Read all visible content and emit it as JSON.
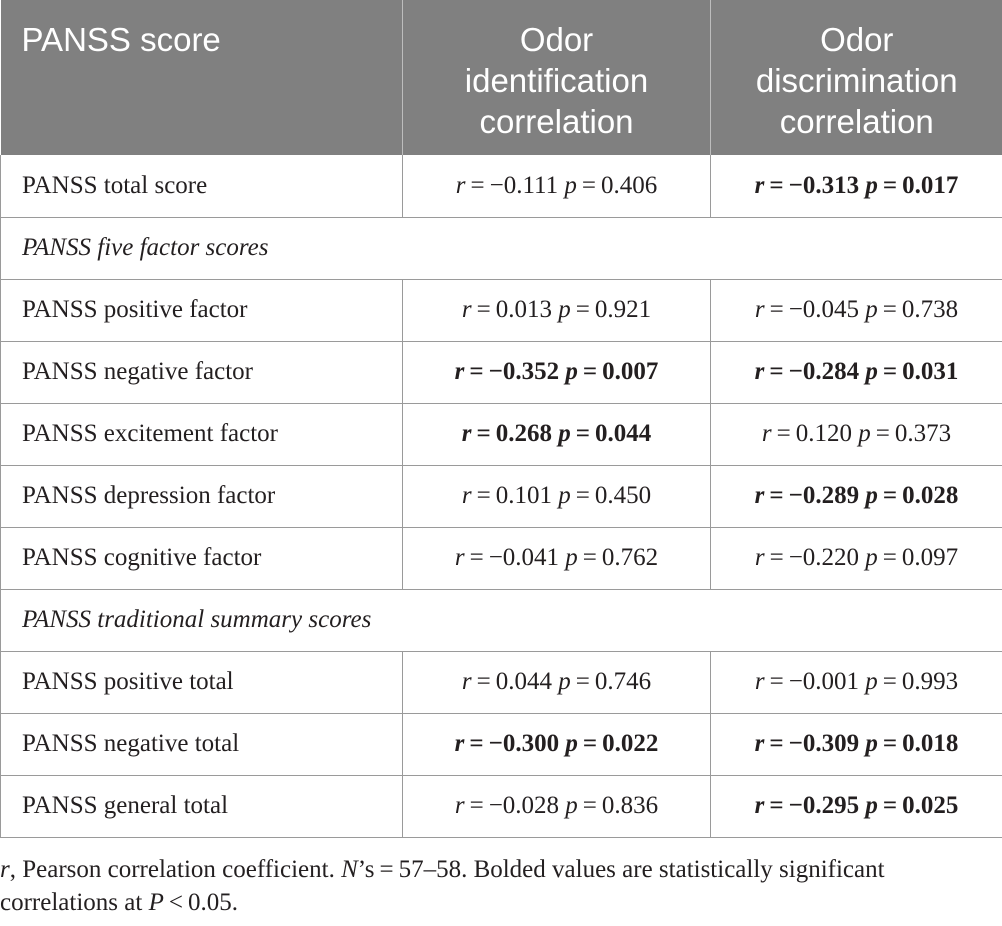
{
  "table": {
    "headers": [
      "PANSS score",
      "Odor identification correlation",
      "Odor discrimination correlation"
    ],
    "header_lines": [
      [
        "PANSS score"
      ],
      [
        "Odor",
        "identification",
        "correlation"
      ],
      [
        "Odor",
        "discrimination",
        "correlation"
      ]
    ],
    "rows": [
      {
        "type": "data",
        "label": "PANSS total score",
        "id": {
          "r": "−0.111",
          "p": "0.406",
          "bold": false
        },
        "disc": {
          "r": "−0.313",
          "p": "0.017",
          "bold": true
        }
      },
      {
        "type": "section",
        "label": "PANSS five factor scores"
      },
      {
        "type": "data",
        "label": "PANSS positive factor",
        "id": {
          "r": "0.013",
          "p": "0.921",
          "bold": false
        },
        "disc": {
          "r": "−0.045",
          "p": "0.738",
          "bold": false
        }
      },
      {
        "type": "data",
        "label": "PANSS negative factor",
        "id": {
          "r": "−0.352",
          "p": "0.007",
          "bold": true
        },
        "disc": {
          "r": "−0.284",
          "p": "0.031",
          "bold": true
        }
      },
      {
        "type": "data",
        "label": "PANSS excitement factor",
        "id": {
          "r": "0.268",
          "p": "0.044",
          "bold": true
        },
        "disc": {
          "r": "0.120",
          "p": "0.373",
          "bold": false
        }
      },
      {
        "type": "data",
        "label": "PANSS depression factor",
        "id": {
          "r": "0.101",
          "p": "0.450",
          "bold": false
        },
        "disc": {
          "r": "−0.289",
          "p": "0.028",
          "bold": true
        }
      },
      {
        "type": "data",
        "label": "PANSS cognitive factor",
        "id": {
          "r": "−0.041",
          "p": "0.762",
          "bold": false
        },
        "disc": {
          "r": "−0.220",
          "p": "0.097",
          "bold": false
        }
      },
      {
        "type": "section",
        "label": "PANSS traditional summary scores"
      },
      {
        "type": "data",
        "label": "PANSS positive total",
        "id": {
          "r": "0.044",
          "p": "0.746",
          "bold": false
        },
        "disc": {
          "r": "−0.001",
          "p": "0.993",
          "bold": false
        }
      },
      {
        "type": "data",
        "label": "PANSS negative total",
        "id": {
          "r": "−0.300",
          "p": "0.022",
          "bold": true
        },
        "disc": {
          "r": "−0.309",
          "p": "0.018",
          "bold": true
        }
      },
      {
        "type": "data",
        "label": "PANSS general total",
        "id": {
          "r": "−0.028",
          "p": "0.836",
          "bold": false
        },
        "disc": {
          "r": "−0.295",
          "p": "0.025",
          "bold": true
        }
      }
    ]
  },
  "footnote": {
    "r_symbol": "r",
    "text1": ", Pearson correlation coefficient. ",
    "n_symbol": "N",
    "text2": "’s = 57–58. Bolded values are statistically significant correlations at ",
    "p_symbol": "P",
    "text3": " < 0.05."
  }
}
